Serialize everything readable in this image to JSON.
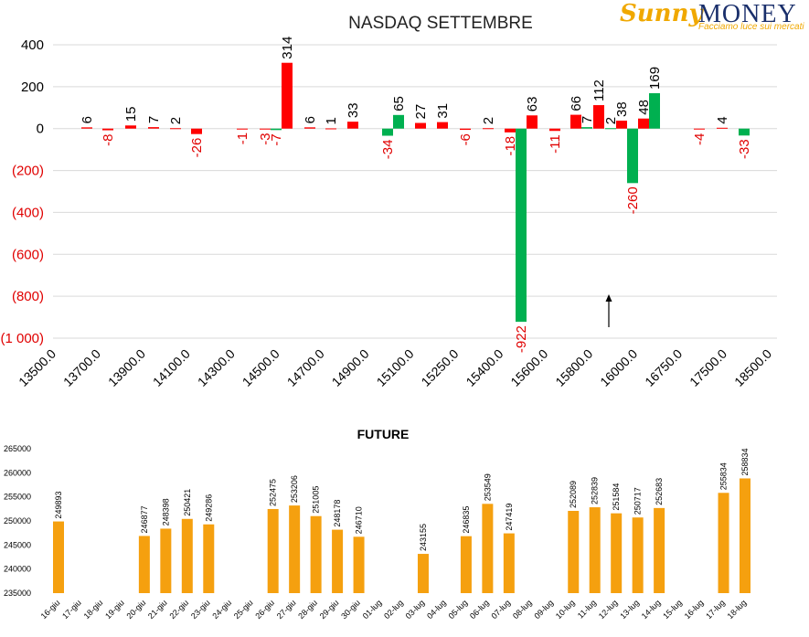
{
  "logo": {
    "brand_first": "Sunny",
    "brand_second": "MONEY",
    "tagline": "Facciamo luce sui mercati"
  },
  "colors": {
    "up": "#ff0000",
    "green": "#00b050",
    "negative_label": "#e00000",
    "bar": "#f5a00f",
    "text": "#000000",
    "grid": "#d9d9d9"
  },
  "chart_data": [
    {
      "type": "bar",
      "title": "NASDAQ SETTEMBRE",
      "ylim": [
        -1000,
        400
      ],
      "yticks": [
        400,
        200,
        0,
        -200,
        -400,
        -600,
        -800,
        -1000
      ],
      "ytick_labels": [
        "400",
        "200",
        "0",
        "(200)",
        "(400)",
        "(600)",
        "(800)",
        "(1 000)"
      ],
      "xtick_labels": [
        "13500.0",
        "13700.0",
        "13900.0",
        "14100.0",
        "14300.0",
        "14500.0",
        "14700.0",
        "14900.0",
        "15100.0",
        "15250.0",
        "15400.0",
        "15600.0",
        "15800.0",
        "16000.0",
        "16750.0",
        "17500.0",
        "18500.0"
      ],
      "series": [
        {
          "color": "red",
          "values": [
            6,
            -8,
            15,
            7,
            2,
            -26,
            -1,
            -3,
            314,
            6,
            1,
            33,
            27,
            31,
            -6,
            2,
            -18,
            63,
            -11,
            66,
            112,
            38,
            48,
            -4,
            4
          ]
        },
        {
          "color": "green",
          "values": [
            -7,
            -34,
            65,
            -922,
            7,
            2,
            -260,
            169,
            -33
          ]
        }
      ],
      "annotation": "arrow"
    },
    {
      "type": "bar",
      "title": "FUTURE",
      "ylim": [
        235000,
        265000
      ],
      "yticks": [
        265000,
        260000,
        255000,
        250000,
        245000,
        240000,
        235000
      ],
      "categories": [
        "16-giu",
        "17-giu",
        "18-giu",
        "19-giu",
        "20-giu",
        "21-giu",
        "22-giu",
        "23-giu",
        "24-giu",
        "25-giu",
        "26-giu",
        "27-giu",
        "28-giu",
        "29-giu",
        "30-giu",
        "01-lug",
        "02-lug",
        "03-lug",
        "04-lug",
        "05-lug",
        "06-lug",
        "07-lug",
        "08-lug",
        "09-lug",
        "10-lug",
        "11-lug",
        "12-lug",
        "13-lug",
        "14-lug",
        "15-lug",
        "16-lug",
        "17-lug",
        "18-lug"
      ],
      "values": [
        249893,
        null,
        null,
        null,
        246877,
        248398,
        250421,
        249286,
        null,
        null,
        252475,
        253206,
        251005,
        248178,
        246710,
        null,
        null,
        243155,
        null,
        246835,
        253549,
        247419,
        null,
        null,
        252089,
        252839,
        251584,
        250717,
        252683,
        null,
        null,
        255834,
        258834
      ]
    }
  ]
}
